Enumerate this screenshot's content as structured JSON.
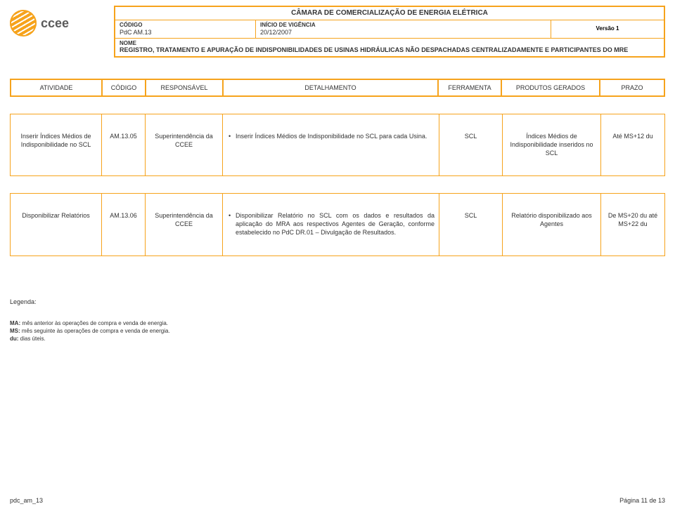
{
  "logo_text": "ccee",
  "header": {
    "title": "CÂMARA DE COMERCIALIZAÇÃO DE ENERGIA ELÉTRICA",
    "codigo_label": "CÓDIGO",
    "codigo_value": "PdC AM.13",
    "vigencia_label": "INÍCIO DE VIGÊNCIA",
    "vigencia_value": "20/12/2007",
    "versao_label": "Versão 1",
    "nome_label": "NOME",
    "nome_value": "REGISTRO, TRATAMENTO E APURAÇÃO DE INDISPONIBILIDADES DE USINAS HIDRÁULICAS NÃO DESPACHADAS CENTRALIZADAMENTE E PARTICIPANTES DO MRE"
  },
  "columns": {
    "atividade": "ATIVIDADE",
    "codigo": "CÓDIGO",
    "responsavel": "RESPONSÁVEL",
    "detalhamento": "DETALHAMENTO",
    "ferramenta": "FERRAMENTA",
    "produtos": "PRODUTOS GERADOS",
    "prazo": "PRAZO"
  },
  "rows": [
    {
      "atividade": "Inserir Índices Médios de Indisponibilidade no SCL",
      "codigo": "AM.13.05",
      "responsavel": "Superintendência da CCEE",
      "detalhamento": "Inserir Índices Médios de Indisponibilidade no SCL para cada Usina.",
      "ferramenta": "SCL",
      "produtos": "Índices Médios de Indisponibilidade inseridos no SCL",
      "prazo": "Até MS+12 du"
    },
    {
      "atividade": "Disponibilizar Relatórios",
      "codigo": "AM.13.06",
      "responsavel": "Superintendência da CCEE",
      "detalhamento": "Disponibilizar Relatório no SCL com os dados e resultados da aplicação do MRA aos respectivos Agentes de Geração, conforme estabelecido no PdC DR.01 – Divulgação de Resultados.",
      "ferramenta": "SCL",
      "produtos": "Relatório disponibilizado aos Agentes",
      "prazo": "De MS+20 du até MS+22 du"
    }
  ],
  "legend": {
    "title": "Legenda:",
    "lines": [
      {
        "b": "MA:",
        "t": " mês anterior às operações de compra e venda de energia."
      },
      {
        "b": "MS:",
        "t": " mês seguinte às operações de compra e venda de energia."
      },
      {
        "b": "du:",
        "t": " dias úteis."
      }
    ]
  },
  "footer": {
    "left": "pdc_am_13",
    "right": "Página 11 de 13"
  },
  "colors": {
    "brand": "#f6a31c",
    "text": "#333333",
    "bg": "#ffffff"
  }
}
